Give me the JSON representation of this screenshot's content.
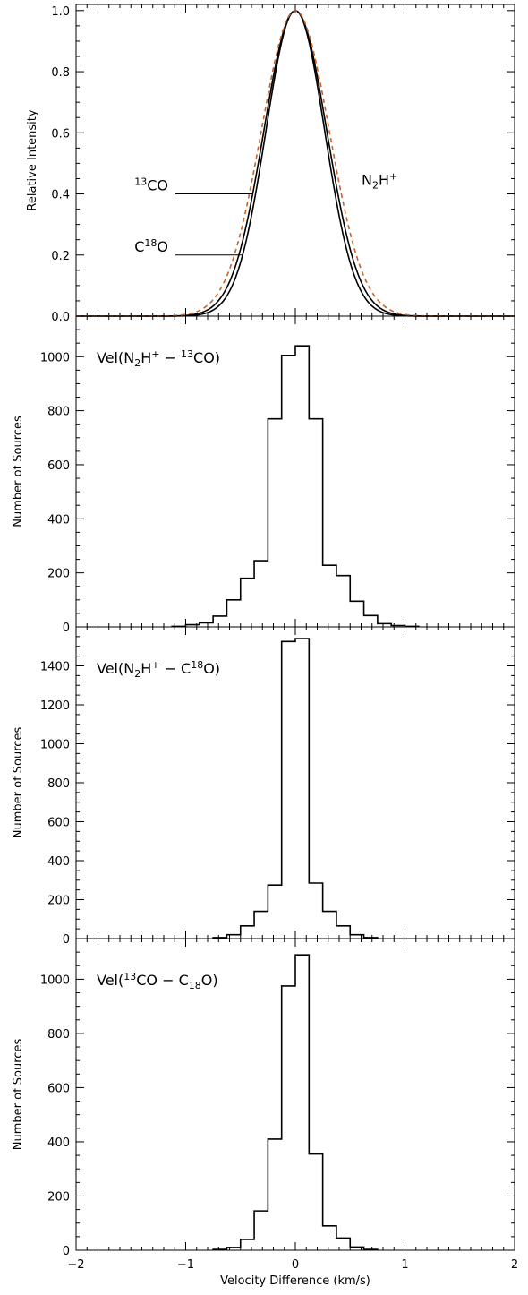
{
  "chart_data": [
    {
      "type": "line",
      "xlabel": "",
      "ylabel": "Relative Intensity",
      "xlim": [
        -2,
        2
      ],
      "ylim": [
        0,
        1.02
      ],
      "yticks": [
        "0.0",
        "0.2",
        "0.4",
        "0.6",
        "0.8",
        "1.0"
      ],
      "series": [
        {
          "name": "13CO",
          "label_parts": [
            "13",
            "CO"
          ],
          "style": "solid",
          "color": "#000000",
          "sigma": 0.287
        },
        {
          "name": "C18O",
          "label_parts": [
            "C",
            "18",
            "O"
          ],
          "style": "solid",
          "color": "#000000",
          "sigma": 0.268
        },
        {
          "name": "N2H+",
          "label_parts": [
            "N",
            "2",
            "H",
            "+"
          ],
          "style": "dashed",
          "color": "#c8642a",
          "sigma": 0.31
        }
      ]
    },
    {
      "type": "histogram",
      "title_parts": [
        "Vel(N",
        "2",
        "H",
        "+",
        " − ",
        "13",
        "CO)"
      ],
      "xlabel": "",
      "ylabel": "Number of Sources",
      "xlim": [
        -2,
        2
      ],
      "ylim": [
        0,
        1150
      ],
      "yticks": [
        "0",
        "200",
        "400",
        "600",
        "800",
        "1000"
      ],
      "bin_edges": [
        -1.125,
        -1.0,
        -0.875,
        -0.75,
        -0.625,
        -0.5,
        -0.375,
        -0.25,
        -0.125,
        0.0,
        0.125,
        0.25,
        0.375,
        0.5,
        0.625,
        0.75,
        0.875,
        1.0,
        1.125
      ],
      "values": [
        2,
        8,
        15,
        40,
        100,
        180,
        245,
        770,
        1005,
        1040,
        770,
        228,
        190,
        95,
        42,
        12,
        5,
        2
      ]
    },
    {
      "type": "histogram",
      "title_parts": [
        "Vel(N",
        "2",
        "H",
        "+",
        " − ",
        "C",
        "18",
        "O)"
      ],
      "xlabel": "",
      "ylabel": "Number of Sources",
      "xlim": [
        -2,
        2
      ],
      "ylim": [
        0,
        1600
      ],
      "yticks": [
        "0",
        "200",
        "400",
        "600",
        "800",
        "1000",
        "1200",
        "1400"
      ],
      "bin_edges": [
        -0.75,
        -0.625,
        -0.5,
        -0.375,
        -0.25,
        -0.125,
        0.0,
        0.125,
        0.25,
        0.375,
        0.5,
        0.625,
        0.75
      ],
      "values": [
        5,
        20,
        65,
        140,
        275,
        1525,
        1540,
        285,
        140,
        65,
        20,
        5
      ]
    },
    {
      "type": "histogram",
      "title_parts": [
        "Vel(",
        "13",
        "CO − C",
        "18",
        "O)"
      ],
      "xlabel": "Velocity Difference (km/s)",
      "ylabel": "Number of Sources",
      "xlim": [
        -2,
        2
      ],
      "ylim": [
        0,
        1150
      ],
      "yticks": [
        "0",
        "200",
        "400",
        "600",
        "800",
        "1000"
      ],
      "xticks": [
        "−2",
        "−1",
        "0",
        "1",
        "2"
      ],
      "bin_edges": [
        -0.75,
        -0.625,
        -0.5,
        -0.375,
        -0.25,
        -0.125,
        0.0,
        0.125,
        0.25,
        0.375,
        0.5,
        0.625,
        0.75
      ],
      "values": [
        3,
        10,
        40,
        145,
        410,
        975,
        1090,
        355,
        90,
        45,
        12,
        3
      ]
    }
  ]
}
